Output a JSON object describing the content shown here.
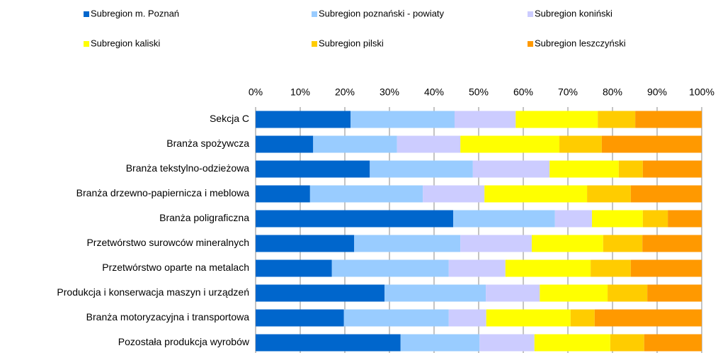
{
  "chart_data": {
    "type": "stacked_bar_horizontal_100",
    "categories": [
      "Sekcja C",
      "Branża spożywcza",
      "Branża tekstylno-odzieżowa",
      "Branża drzewno-papiernicza i meblowa",
      "Branża poligraficzna",
      "Przetwórstwo surowców mineralnych",
      "Przetwórstwo oparte na metalach",
      "Produkcja i konserwacja maszyn i urządzeń",
      "Branża motoryzacyjna i transportowa",
      "Pozostała produkcja wyrobów"
    ],
    "series": [
      {
        "name": "Subregion m. Poznań",
        "color": "#0066cc",
        "values": [
          21.3,
          12.9,
          25.6,
          12.2,
          44.3,
          22.1,
          17.1,
          28.9,
          19.8,
          32.5
        ]
      },
      {
        "name": "Subregion poznański - powiaty",
        "color": "#99ccff",
        "values": [
          23.3,
          18.8,
          23.1,
          25.3,
          22.8,
          23.8,
          26.2,
          22.7,
          23.5,
          17.7
        ]
      },
      {
        "name": "Subregion koniński",
        "color": "#ccccff",
        "values": [
          13.7,
          14.2,
          17.2,
          13.8,
          8.3,
          16.0,
          12.7,
          12.1,
          8.4,
          12.3
        ]
      },
      {
        "name": "Subregion kaliski",
        "color": "#ffff00",
        "values": [
          18.4,
          22.2,
          15.5,
          23.0,
          11.4,
          16.0,
          19.1,
          15.2,
          18.9,
          17.0
        ]
      },
      {
        "name": "Subregion pilski",
        "color": "#ffcc00",
        "values": [
          8.4,
          9.5,
          5.4,
          9.8,
          5.6,
          8.8,
          9.0,
          8.9,
          5.4,
          7.6
        ]
      },
      {
        "name": "Subregion leszczyński",
        "color": "#ff9900",
        "values": [
          14.9,
          22.4,
          13.2,
          15.9,
          7.6,
          13.3,
          15.9,
          12.2,
          24.0,
          12.9
        ]
      }
    ],
    "xlim": [
      0,
      100
    ],
    "xticks": [
      {
        "value": 0,
        "label": "0%"
      },
      {
        "value": 10,
        "label": "10%"
      },
      {
        "value": 20,
        "label": "20%"
      },
      {
        "value": 30,
        "label": "30%"
      },
      {
        "value": 40,
        "label": "40%"
      },
      {
        "value": 50,
        "label": "50%"
      },
      {
        "value": 60,
        "label": "60%"
      },
      {
        "value": 70,
        "label": "70%"
      },
      {
        "value": 80,
        "label": "80%"
      },
      {
        "value": 90,
        "label": "90%"
      },
      {
        "value": 100,
        "label": "100%"
      }
    ],
    "grid": true,
    "legend": "top"
  }
}
